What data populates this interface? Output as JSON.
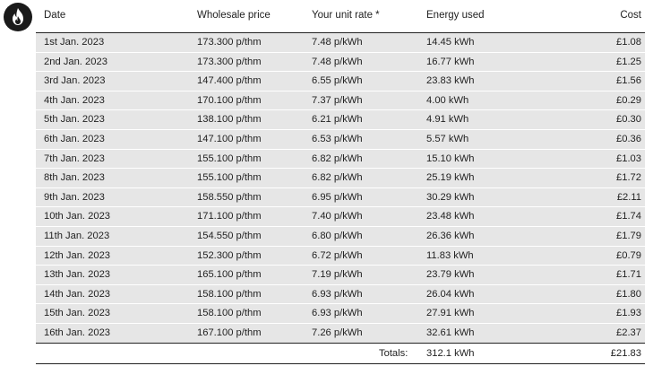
{
  "header": {
    "date": "Date",
    "wholesale": "Wholesale price",
    "unit_rate": "Your unit rate *",
    "energy": "Energy used",
    "cost": "Cost"
  },
  "rows": [
    {
      "date": "1st Jan. 2023",
      "wholesale": "173.300 p/thm",
      "rate": "7.48 p/kWh",
      "used": "14.45 kWh",
      "cost": "£1.08"
    },
    {
      "date": "2nd Jan. 2023",
      "wholesale": "173.300 p/thm",
      "rate": "7.48 p/kWh",
      "used": "16.77 kWh",
      "cost": "£1.25"
    },
    {
      "date": "3rd Jan. 2023",
      "wholesale": "147.400 p/thm",
      "rate": "6.55 p/kWh",
      "used": "23.83 kWh",
      "cost": "£1.56"
    },
    {
      "date": "4th Jan. 2023",
      "wholesale": "170.100 p/thm",
      "rate": "7.37 p/kWh",
      "used": "4.00 kWh",
      "cost": "£0.29"
    },
    {
      "date": "5th Jan. 2023",
      "wholesale": "138.100 p/thm",
      "rate": "6.21 p/kWh",
      "used": "4.91 kWh",
      "cost": "£0.30"
    },
    {
      "date": "6th Jan. 2023",
      "wholesale": "147.100 p/thm",
      "rate": "6.53 p/kWh",
      "used": "5.57 kWh",
      "cost": "£0.36"
    },
    {
      "date": "7th Jan. 2023",
      "wholesale": "155.100 p/thm",
      "rate": "6.82 p/kWh",
      "used": "15.10 kWh",
      "cost": "£1.03"
    },
    {
      "date": "8th Jan. 2023",
      "wholesale": "155.100 p/thm",
      "rate": "6.82 p/kWh",
      "used": "25.19 kWh",
      "cost": "£1.72"
    },
    {
      "date": "9th Jan. 2023",
      "wholesale": "158.550 p/thm",
      "rate": "6.95 p/kWh",
      "used": "30.29 kWh",
      "cost": "£2.11"
    },
    {
      "date": "10th Jan. 2023",
      "wholesale": "171.100 p/thm",
      "rate": "7.40 p/kWh",
      "used": "23.48 kWh",
      "cost": "£1.74"
    },
    {
      "date": "11th Jan. 2023",
      "wholesale": "154.550 p/thm",
      "rate": "6.80 p/kWh",
      "used": "26.36 kWh",
      "cost": "£1.79"
    },
    {
      "date": "12th Jan. 2023",
      "wholesale": "152.300 p/thm",
      "rate": "6.72 p/kWh",
      "used": "11.83 kWh",
      "cost": "£0.79"
    },
    {
      "date": "13th Jan. 2023",
      "wholesale": "165.100 p/thm",
      "rate": "7.19 p/kWh",
      "used": "23.79 kWh",
      "cost": "£1.71"
    },
    {
      "date": "14th Jan. 2023",
      "wholesale": "158.100 p/thm",
      "rate": "6.93 p/kWh",
      "used": "26.04 kWh",
      "cost": "£1.80"
    },
    {
      "date": "15th Jan. 2023",
      "wholesale": "158.100 p/thm",
      "rate": "6.93 p/kWh",
      "used": "27.91 kWh",
      "cost": "£1.93"
    },
    {
      "date": "16th Jan. 2023",
      "wholesale": "167.100 p/thm",
      "rate": "7.26 p/kWh",
      "used": "32.61 kWh",
      "cost": "£2.37"
    }
  ],
  "totals": {
    "label": "Totals:",
    "energy": "312.1 kWh",
    "cost": "£21.83"
  },
  "icon": "flame-icon",
  "colors": {
    "row_bg": "#e6e6e6",
    "icon_bg": "#1a1a1a"
  }
}
